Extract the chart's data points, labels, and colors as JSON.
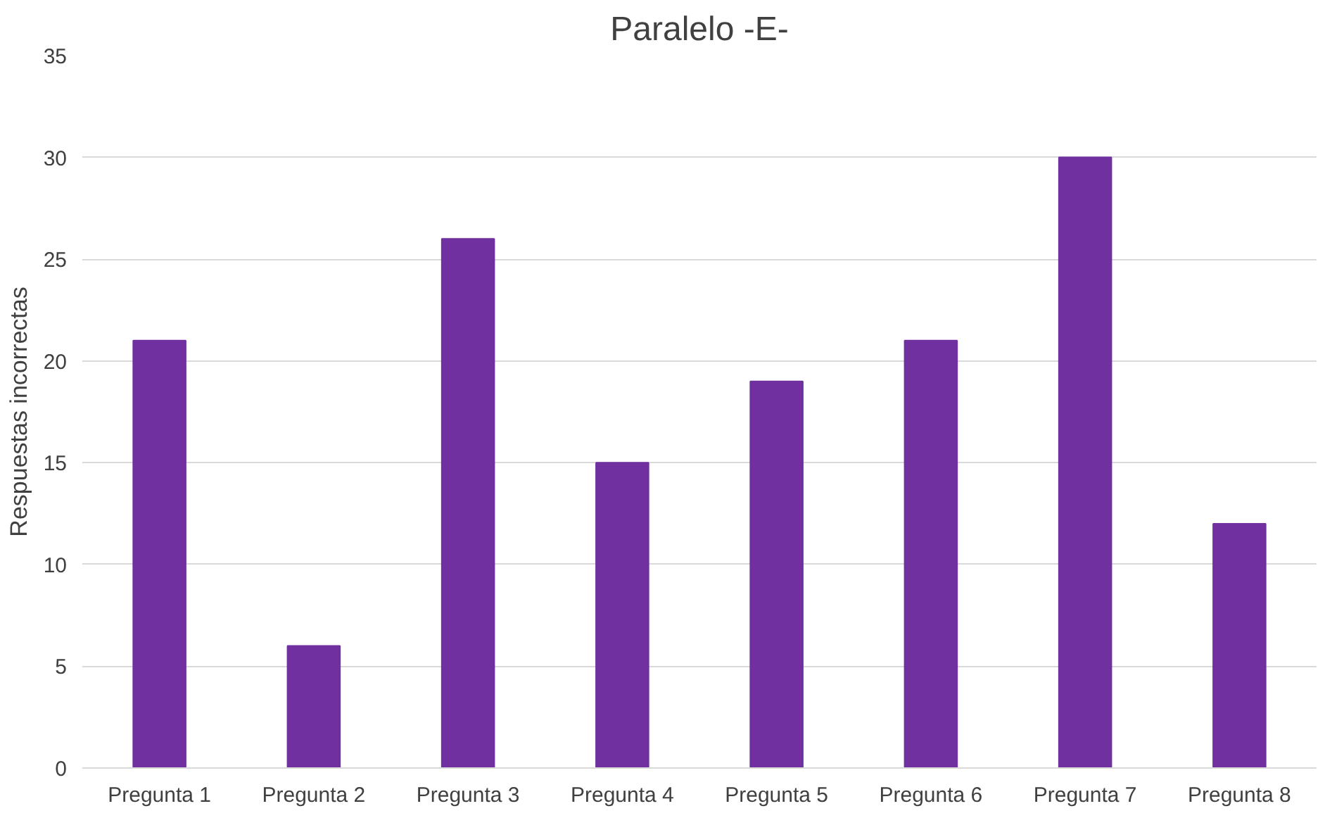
{
  "chart_data": {
    "type": "bar",
    "title": "Paralelo -E-",
    "ylabel": "Respuestas incorrectas",
    "categories": [
      "Pregunta 1",
      "Pregunta 2",
      "Pregunta 3",
      "Pregunta 4",
      "Pregunta 5",
      "Pregunta 6",
      "Pregunta 7",
      "Pregunta 8"
    ],
    "values": [
      21,
      6,
      26,
      15,
      19,
      21,
      30,
      12
    ],
    "color": "#7030a0",
    "ylim": [
      0,
      35
    ],
    "yticks": [
      0,
      5,
      10,
      15,
      20,
      25,
      30,
      35
    ],
    "grid": "y"
  }
}
